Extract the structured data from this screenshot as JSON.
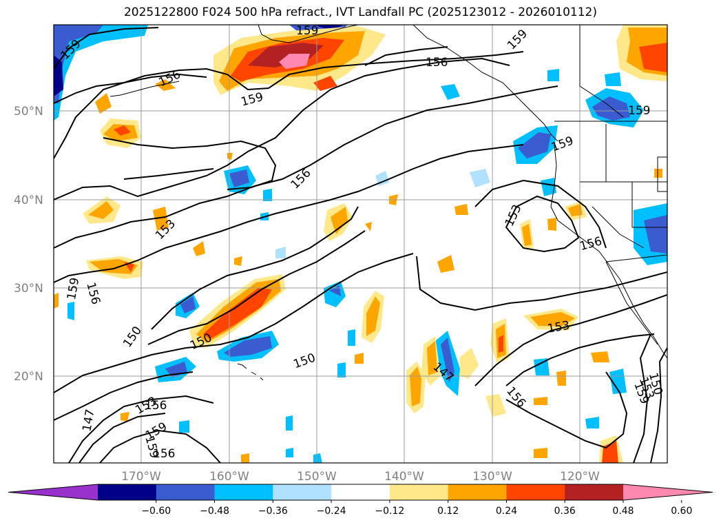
{
  "title": "2025122800 F024 500 hPa refract., IVT Landfall PC (2025123012 - 2026010112)",
  "lat_labels": [
    "50°N",
    "40°N",
    "30°N",
    "20°N"
  ],
  "lon_labels": [
    "170°W",
    "160°W",
    "150°W",
    "140°W",
    "130°W",
    "120°W"
  ],
  "contour_labels": [
    "159",
    "159",
    "156",
    "159",
    "159",
    "156",
    "159",
    "159",
    "156",
    "153",
    "153",
    "156",
    "159",
    "156",
    "150",
    "150",
    "150",
    "147",
    "153",
    "156",
    "147",
    "156",
    "159",
    "156",
    "153",
    "159",
    "150",
    "153",
    "159"
  ],
  "colorbar": {
    "ticks": [
      "−0.60",
      "−0.48",
      "−0.36",
      "−0.24",
      "−0.12",
      "0.12",
      "0.24",
      "0.36",
      "0.48",
      "0.60"
    ],
    "colors": [
      "#9932cc",
      "#000088",
      "#3a5cd0",
      "#00bfff",
      "#b0e2ff",
      "#ffffff",
      "#ffe88a",
      "#ffa500",
      "#ff4500",
      "#b22222",
      "#ff88b0"
    ]
  },
  "map_colors": {
    "pos_light": "#ffe88a",
    "pos_orange": "#ffa500",
    "pos_red": "#ff4500",
    "pos_darkred": "#b22222",
    "pos_pink": "#ff88b0",
    "neg_light": "#b0e2ff",
    "neg_cyan": "#00bfff",
    "neg_blue": "#3a5cd0",
    "neg_navy": "#000088"
  }
}
